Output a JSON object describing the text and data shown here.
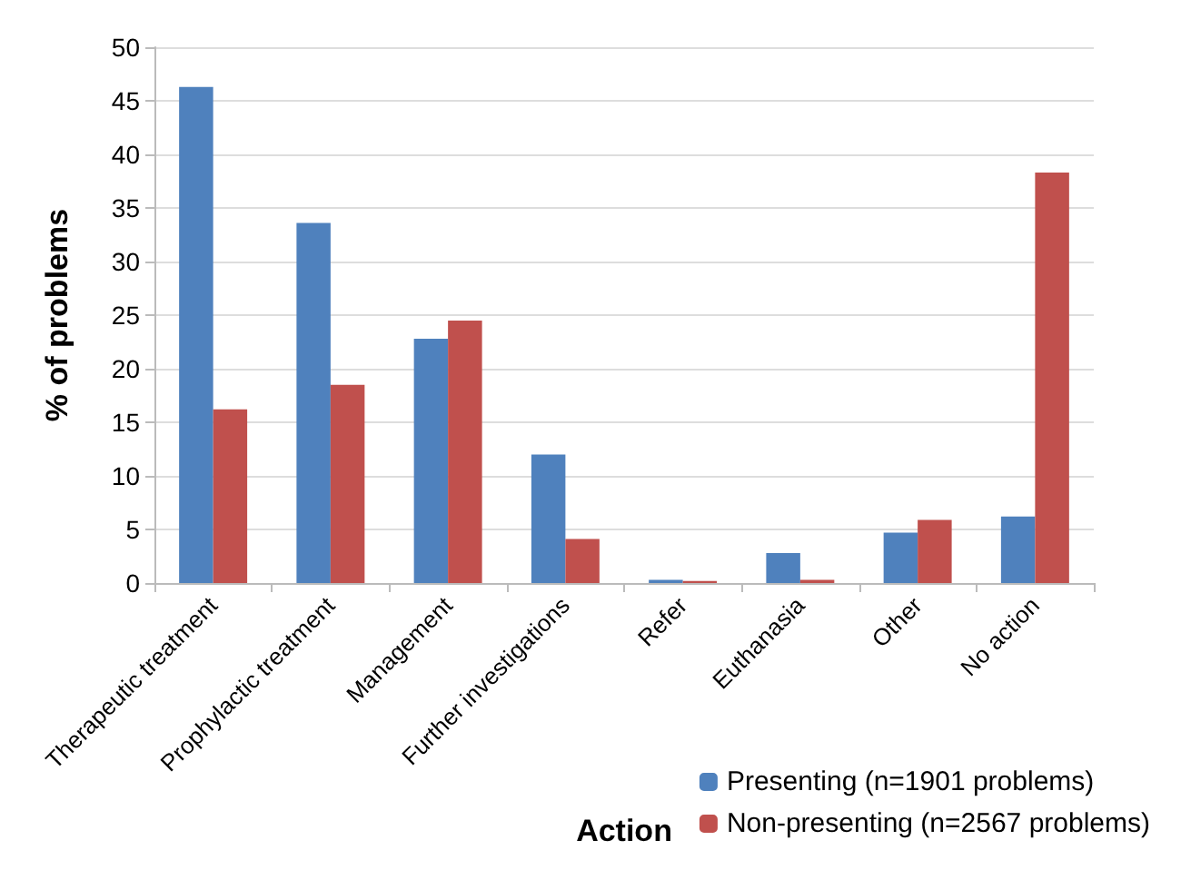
{
  "chart_data": {
    "type": "bar",
    "xlabel": "Action",
    "ylabel": "% of problems",
    "categories": [
      "Therapeutic treatment",
      "Prophylactic treatment",
      "Management",
      "Further investigations",
      "Refer",
      "Euthanasia",
      "Other",
      "No action"
    ],
    "series": [
      {
        "name": "Presenting (n=1901 problems)",
        "color": "#4f81bd",
        "values": [
          46.3,
          33.6,
          22.8,
          12,
          0.3,
          2.8,
          4.7,
          6.2
        ]
      },
      {
        "name": "Non-presenting (n=2567 problems)",
        "color": "#c0504d",
        "values": [
          16.2,
          18.5,
          24.5,
          4.1,
          0.2,
          0.3,
          5.9,
          38.3
        ]
      }
    ],
    "ylim": [
      0,
      50
    ],
    "yticks": [
      0,
      5,
      10,
      15,
      20,
      25,
      30,
      35,
      40,
      45,
      50
    ],
    "grid": "y",
    "legend": "bottom right"
  }
}
